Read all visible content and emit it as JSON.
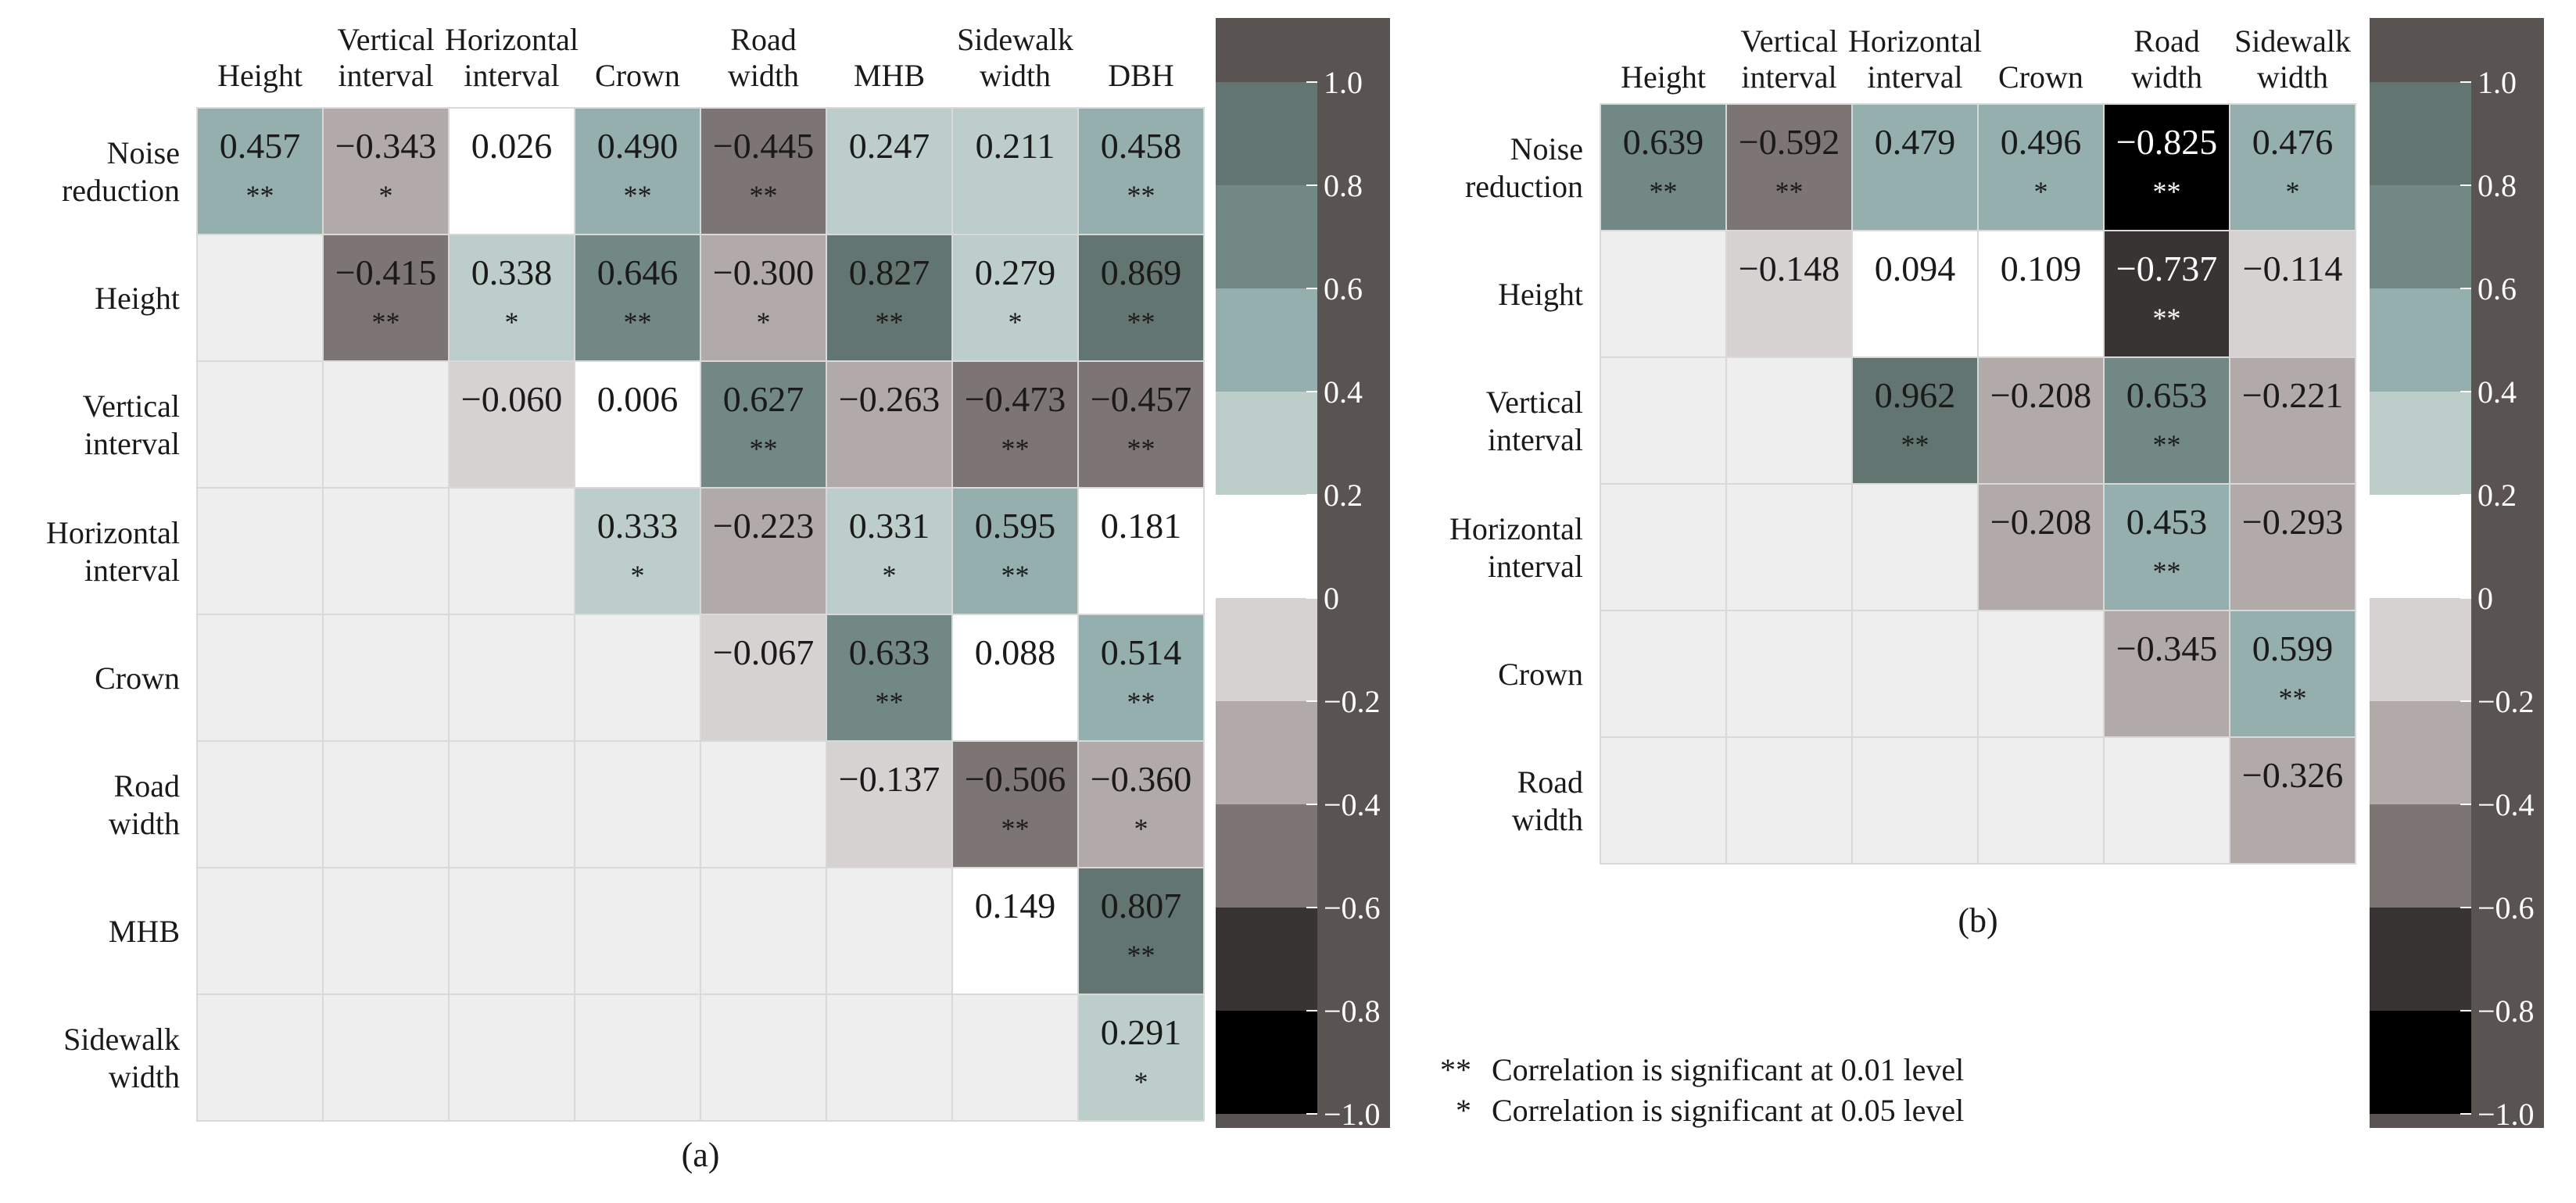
{
  "chart_data": [
    {
      "type": "heatmap",
      "panel_label": "(a)",
      "columns": [
        [
          "Height"
        ],
        [
          "Vertical",
          "interval"
        ],
        [
          "Horizontal",
          "interval"
        ],
        [
          "Crown"
        ],
        [
          "Road",
          "width"
        ],
        [
          "MHB"
        ],
        [
          "Sidewalk",
          "width"
        ],
        [
          "DBH"
        ]
      ],
      "rows": [
        [
          "Noise",
          "reduction"
        ],
        [
          "Height"
        ],
        [
          "Vertical",
          "interval"
        ],
        [
          "Horizontal",
          "interval"
        ],
        [
          "Crown"
        ],
        [
          "Road",
          "width"
        ],
        [
          "MHB"
        ],
        [
          "Sidewalk",
          "width"
        ]
      ],
      "cells": [
        [
          [
            0.457,
            "**"
          ],
          [
            -0.343,
            "*"
          ],
          [
            0.026,
            ""
          ],
          [
            0.49,
            "**"
          ],
          [
            -0.445,
            "**"
          ],
          [
            0.247,
            ""
          ],
          [
            0.211,
            ""
          ],
          [
            0.458,
            "**"
          ]
        ],
        [
          null,
          [
            -0.415,
            "**"
          ],
          [
            0.338,
            "*"
          ],
          [
            0.646,
            "**"
          ],
          [
            -0.3,
            "*"
          ],
          [
            0.827,
            "**"
          ],
          [
            0.279,
            "*"
          ],
          [
            0.869,
            "**"
          ]
        ],
        [
          null,
          null,
          [
            -0.06,
            ""
          ],
          [
            0.006,
            ""
          ],
          [
            0.627,
            "**"
          ],
          [
            -0.263,
            ""
          ],
          [
            -0.473,
            "**"
          ],
          [
            -0.457,
            "**"
          ]
        ],
        [
          null,
          null,
          null,
          [
            0.333,
            "*"
          ],
          [
            -0.223,
            ""
          ],
          [
            0.331,
            "*"
          ],
          [
            0.595,
            "**"
          ],
          [
            0.181,
            ""
          ]
        ],
        [
          null,
          null,
          null,
          null,
          [
            -0.067,
            ""
          ],
          [
            0.633,
            "**"
          ],
          [
            0.088,
            ""
          ],
          [
            0.514,
            "**"
          ]
        ],
        [
          null,
          null,
          null,
          null,
          null,
          [
            -0.137,
            ""
          ],
          [
            -0.506,
            "**"
          ],
          [
            -0.36,
            "*"
          ]
        ],
        [
          null,
          null,
          null,
          null,
          null,
          null,
          [
            0.149,
            ""
          ],
          [
            0.807,
            "**"
          ]
        ],
        [
          null,
          null,
          null,
          null,
          null,
          null,
          null,
          [
            0.291,
            "*"
          ]
        ]
      ]
    },
    {
      "type": "heatmap",
      "panel_label": "(b)",
      "columns": [
        [
          "Height"
        ],
        [
          "Vertical",
          "interval"
        ],
        [
          "Horizontal",
          "interval"
        ],
        [
          "Crown"
        ],
        [
          "Road",
          "width"
        ],
        [
          "Sidewalk",
          "width"
        ]
      ],
      "rows": [
        [
          "Noise",
          "reduction"
        ],
        [
          "Height"
        ],
        [
          "Vertical",
          "interval"
        ],
        [
          "Horizontal",
          "interval"
        ],
        [
          "Crown"
        ],
        [
          "Road",
          "width"
        ]
      ],
      "cells": [
        [
          [
            0.639,
            "**"
          ],
          [
            -0.592,
            "**"
          ],
          [
            0.479,
            ""
          ],
          [
            0.496,
            "*"
          ],
          [
            -0.825,
            "**"
          ],
          [
            0.476,
            "*"
          ]
        ],
        [
          null,
          [
            -0.148,
            ""
          ],
          [
            0.094,
            ""
          ],
          [
            0.109,
            ""
          ],
          [
            -0.737,
            "**"
          ],
          [
            -0.114,
            ""
          ]
        ],
        [
          null,
          null,
          [
            0.962,
            "**"
          ],
          [
            -0.208,
            ""
          ],
          [
            0.653,
            "**"
          ],
          [
            -0.221,
            ""
          ]
        ],
        [
          null,
          null,
          null,
          [
            -0.208,
            ""
          ],
          [
            0.453,
            "**"
          ],
          [
            -0.293,
            ""
          ]
        ],
        [
          null,
          null,
          null,
          null,
          [
            -0.345,
            ""
          ],
          [
            0.599,
            "**"
          ]
        ],
        [
          null,
          null,
          null,
          null,
          null,
          [
            -0.326,
            ""
          ]
        ]
      ]
    }
  ],
  "colorbar": {
    "ticks": [
      "1.0",
      "0.8",
      "0.6",
      "0.4",
      "0.2",
      "0",
      "-0.2",
      "-0.4",
      "-0.6",
      "-0.8",
      "-1.0"
    ],
    "bins": [
      {
        "lo": 0.8,
        "hi": 1.0,
        "color": "#637570"
      },
      {
        "lo": 0.6,
        "hi": 0.8,
        "color": "#728884"
      },
      {
        "lo": 0.4,
        "hi": 0.6,
        "color": "#95aeae"
      },
      {
        "lo": 0.2,
        "hi": 0.4,
        "color": "#bccdca"
      },
      {
        "lo": 0.0,
        "hi": 0.2,
        "color": "#ffffff"
      },
      {
        "lo": -0.2,
        "hi": 0.0,
        "color": "#d6d2d2"
      },
      {
        "lo": -0.4,
        "hi": -0.2,
        "color": "#b2aaa9"
      },
      {
        "lo": -0.6,
        "hi": -0.4,
        "color": "#7d7574"
      },
      {
        "lo": -0.8,
        "hi": -0.6,
        "color": "#383434"
      },
      {
        "lo": -1.0,
        "hi": -0.8,
        "color": "#000000"
      }
    ],
    "frame_color": "#595352"
  },
  "colors": {
    "empty_cell": "#eeeeee",
    "grid_line": "#d9d9d9",
    "text_dark": "#1a1a1a",
    "text_light": "#ffffff"
  },
  "legend": [
    {
      "mark": "**",
      "text": "Correlation is significant at 0.01 level"
    },
    {
      "mark": "*",
      "text": "Correlation is significant at 0.05 level"
    }
  ]
}
